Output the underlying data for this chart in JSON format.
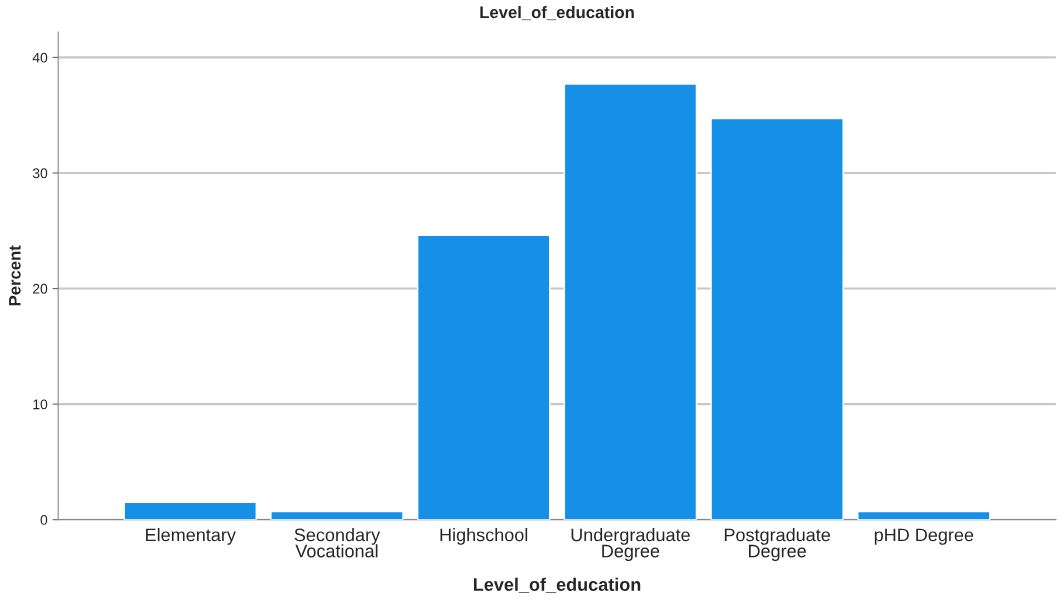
{
  "chart_data": {
    "type": "bar",
    "title": "Level_of_education",
    "xlabel": "Level_of_education",
    "ylabel": "Percent",
    "categories": [
      "Elementary",
      "Secondary\nVocational",
      "Highschool",
      "Undergraduate\nDegree",
      "Postgraduate\nDegree",
      "pHD Degree"
    ],
    "values": [
      1.5,
      0.7,
      24.6,
      37.7,
      34.7,
      0.7
    ],
    "color": "#1590e6",
    "ylim": [
      0,
      42.2
    ],
    "yticks": [
      0,
      10,
      20,
      30,
      40
    ],
    "grid": "y"
  }
}
